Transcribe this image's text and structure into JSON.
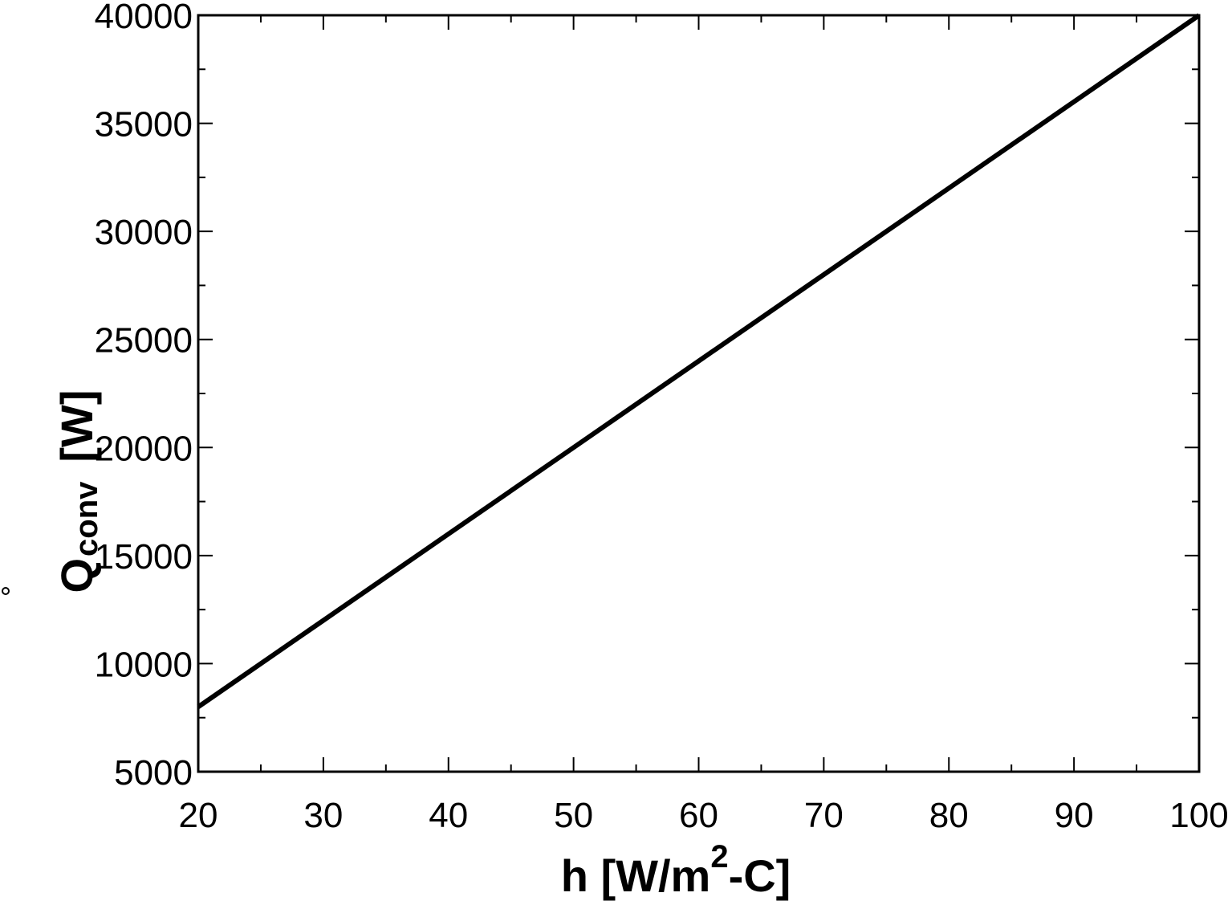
{
  "chart_data": {
    "type": "line",
    "x": [
      20,
      30,
      40,
      50,
      60,
      70,
      80,
      90,
      100
    ],
    "values": [
      8000,
      12000,
      16000,
      20000,
      24000,
      28000,
      32000,
      36000,
      40000
    ],
    "color": "#000000",
    "xlim": [
      20,
      100
    ],
    "xticks": [
      20,
      30,
      40,
      50,
      60,
      70,
      80,
      90,
      100
    ],
    "xminorticks": [
      25,
      35,
      45,
      55,
      65,
      75,
      85,
      95
    ],
    "ylim": [
      5000,
      40000
    ],
    "yticks": [
      5000,
      10000,
      15000,
      20000,
      25000,
      30000,
      35000,
      40000
    ],
    "yminorticks": [
      7500,
      12500,
      17500,
      22500,
      27500,
      32500,
      37500
    ],
    "xlabel": [
      "h  [W/m",
      "2",
      "-C]"
    ],
    "ylabel": [
      "Q",
      "conv",
      "[W]"
    ]
  }
}
